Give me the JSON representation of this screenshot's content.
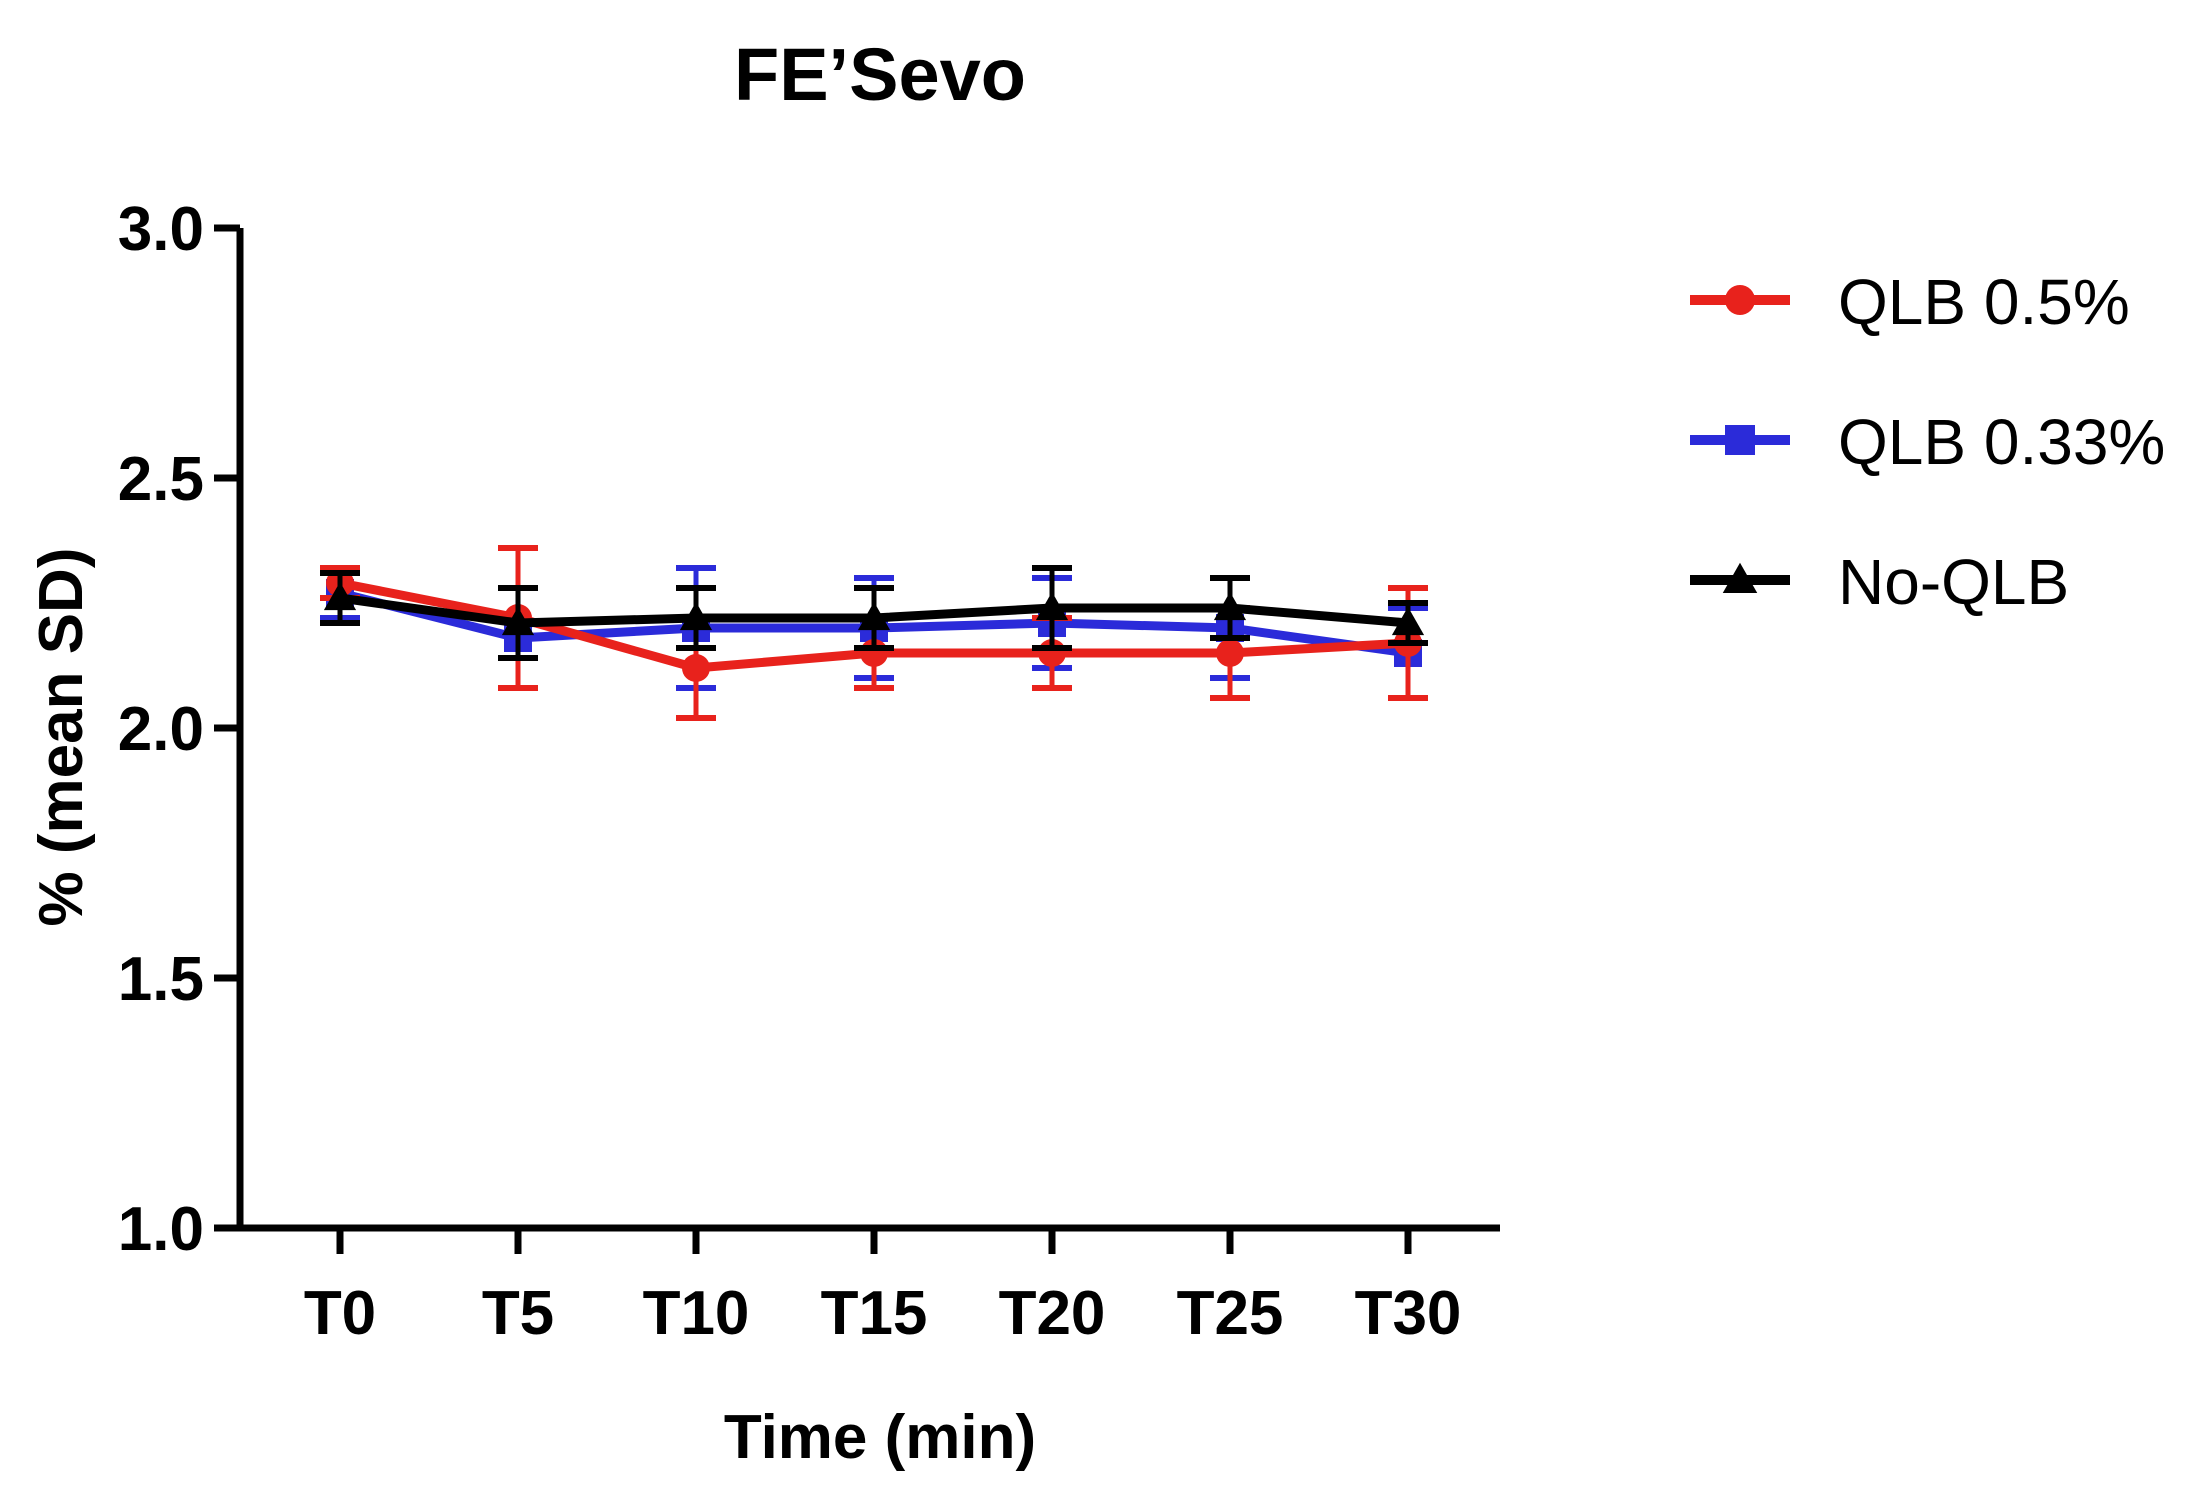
{
  "chart_data": {
    "type": "line",
    "title": "FE’Sevo",
    "xlabel": "Time (min)",
    "ylabel": "% (mean SD)",
    "categories": [
      "T0",
      "T5",
      "T10",
      "T15",
      "T20",
      "T25",
      "T30"
    ],
    "ylim": [
      1.0,
      3.0
    ],
    "yticks": [
      "1.0",
      "1.5",
      "2.0",
      "2.5",
      "3.0"
    ],
    "ytick_values": [
      1.0,
      1.5,
      2.0,
      2.5,
      3.0
    ],
    "grid": false,
    "legend_position": "right",
    "series": [
      {
        "name": "QLB 0.5%",
        "color": "#e8221c",
        "marker": "circle",
        "values": [
          2.29,
          2.22,
          2.12,
          2.15,
          2.15,
          2.15,
          2.17
        ],
        "errors": [
          0.03,
          0.14,
          0.1,
          0.07,
          0.07,
          0.09,
          0.11
        ]
      },
      {
        "name": "QLB 0.33%",
        "color": "#2b2bd9",
        "marker": "square",
        "values": [
          2.27,
          2.18,
          2.2,
          2.2,
          2.21,
          2.2,
          2.15
        ],
        "errors": [
          0.05,
          0.1,
          0.12,
          0.1,
          0.09,
          0.1,
          0.09
        ]
      },
      {
        "name": "No-QLB",
        "color": "#000000",
        "marker": "triangle",
        "values": [
          2.26,
          2.21,
          2.22,
          2.22,
          2.24,
          2.24,
          2.21
        ],
        "errors": [
          0.05,
          0.07,
          0.06,
          0.06,
          0.08,
          0.06,
          0.04
        ]
      }
    ]
  }
}
